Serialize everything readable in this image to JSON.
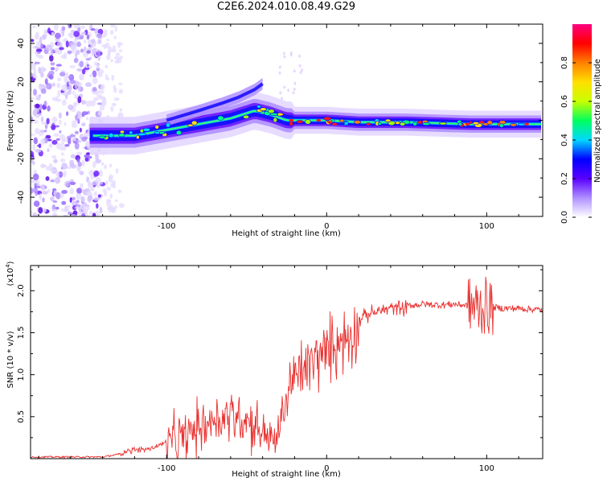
{
  "figure_title": "C2E6.2024.010.08.49.G29",
  "chart_data": [
    {
      "type": "heatmap",
      "title": "C2E6.2024.010.08.49.G29",
      "xlabel": "Height of straight line (km)",
      "ylabel": "Frequency (Hz)",
      "xlim": [
        -185,
        135
      ],
      "ylim": [
        -50,
        50
      ],
      "x_ticks": [
        -100,
        0,
        100
      ],
      "y_ticks": [
        -40,
        -20,
        0,
        20,
        40
      ],
      "colorbar": {
        "label": "Normalized spectral amplitude",
        "range": [
          0,
          1
        ],
        "ticks": [
          "0.0",
          "0.2",
          "0.4",
          "0.6",
          "0.8"
        ],
        "colors": [
          "#ffffff",
          "#b090ff",
          "#5a00ff",
          "#0000ff",
          "#00d8ff",
          "#00ff60",
          "#c8ff00",
          "#ffe000",
          "#ff8000",
          "#ff0000",
          "#ff0080"
        ]
      },
      "ridge": {
        "x": [
          -145,
          -120,
          -100,
          -80,
          -60,
          -45,
          -35,
          -25,
          -10,
          0,
          20,
          50,
          90,
          135
        ],
        "y": [
          -8,
          -8,
          -5,
          -2,
          1,
          5,
          3,
          0,
          0,
          0,
          -1,
          -1,
          -2,
          -2
        ]
      }
    },
    {
      "type": "line",
      "xlabel": "Height of straight line (km)",
      "ylabel": "SNR (10 * v/v)",
      "y_scale_label": "(x10",
      "y_scale_exp": "4",
      "xlim": [
        -185,
        135
      ],
      "ylim": [
        0,
        2.3
      ],
      "x_ticks": [
        -100,
        0,
        100
      ],
      "y_ticks": [
        "0.5",
        "1.0",
        "1.5",
        "2.0"
      ],
      "line_color": "#e8312f",
      "series": [
        {
          "name": "SNR",
          "x": [
            -185,
            -140,
            -130,
            -125,
            -110,
            -100,
            -90,
            -80,
            -70,
            -60,
            -50,
            -40,
            -32,
            -27,
            -22,
            -17,
            -10,
            -5,
            0,
            5,
            10,
            15,
            20,
            25,
            30,
            40,
            50,
            60,
            70,
            80,
            85,
            90,
            95,
            100,
            105,
            110,
            120,
            135
          ],
          "y": [
            0.02,
            0.02,
            0.05,
            0.1,
            0.12,
            0.2,
            0.25,
            0.4,
            0.5,
            0.55,
            0.5,
            0.35,
            0.2,
            0.6,
            0.95,
            1.05,
            1.15,
            1.25,
            1.3,
            1.4,
            1.45,
            1.5,
            1.65,
            1.72,
            1.75,
            1.8,
            1.82,
            1.84,
            1.83,
            1.84,
            1.83,
            1.82,
            1.8,
            1.82,
            1.8,
            1.79,
            1.79,
            1.77
          ]
        }
      ]
    }
  ]
}
